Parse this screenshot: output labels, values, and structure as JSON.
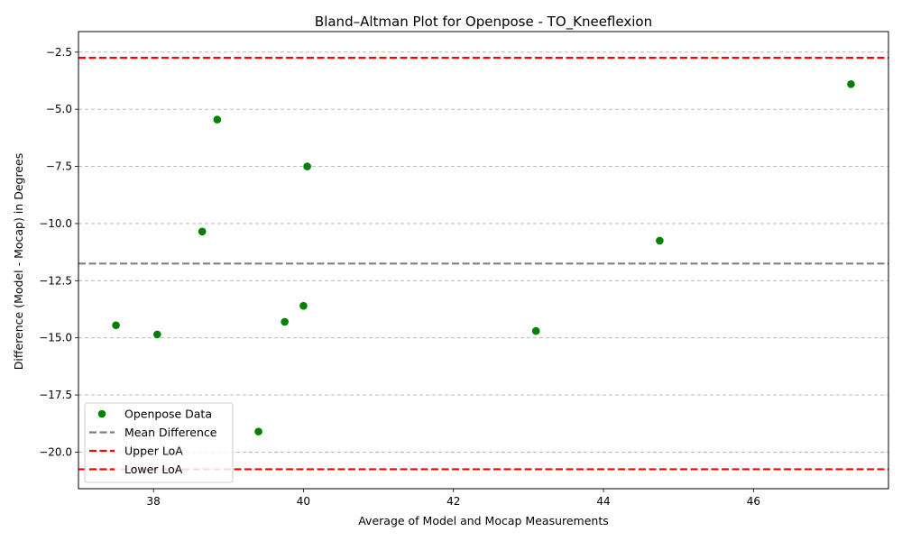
{
  "chart_data": {
    "type": "scatter",
    "title": "Bland–Altman Plot for Openpose - TO_Kneeflexion",
    "xlabel": "Average of Model and Mocap Measurements",
    "ylabel": "Difference (Model - Mocap) in Degrees",
    "xlim": [
      37.0,
      47.8
    ],
    "ylim": [
      -21.6,
      -1.6
    ],
    "xticks": [
      38,
      40,
      42,
      44,
      46
    ],
    "yticks": [
      -2.5,
      -5.0,
      -7.5,
      -10.0,
      -12.5,
      -15.0,
      -17.5,
      -20.0
    ],
    "grid": "y-dashed",
    "legend_position": "lower-left",
    "series": [
      {
        "name": "Openpose Data",
        "color": "#008000",
        "points": [
          {
            "x": 37.5,
            "y": -14.45
          },
          {
            "x": 38.05,
            "y": -14.85
          },
          {
            "x": 38.65,
            "y": -10.35
          },
          {
            "x": 38.85,
            "y": -5.45
          },
          {
            "x": 39.4,
            "y": -19.1
          },
          {
            "x": 39.75,
            "y": -14.3
          },
          {
            "x": 40.0,
            "y": -13.6
          },
          {
            "x": 40.05,
            "y": -7.5
          },
          {
            "x": 43.1,
            "y": -14.7
          },
          {
            "x": 44.75,
            "y": -10.75
          },
          {
            "x": 47.3,
            "y": -3.9
          }
        ]
      }
    ],
    "lines": [
      {
        "name": "Mean Difference",
        "y": -11.75,
        "color": "#808080"
      },
      {
        "name": "Upper LoA",
        "y": -2.75,
        "color": "#ff0000"
      },
      {
        "name": "Lower LoA",
        "y": -20.75,
        "color": "#ff0000"
      }
    ]
  }
}
